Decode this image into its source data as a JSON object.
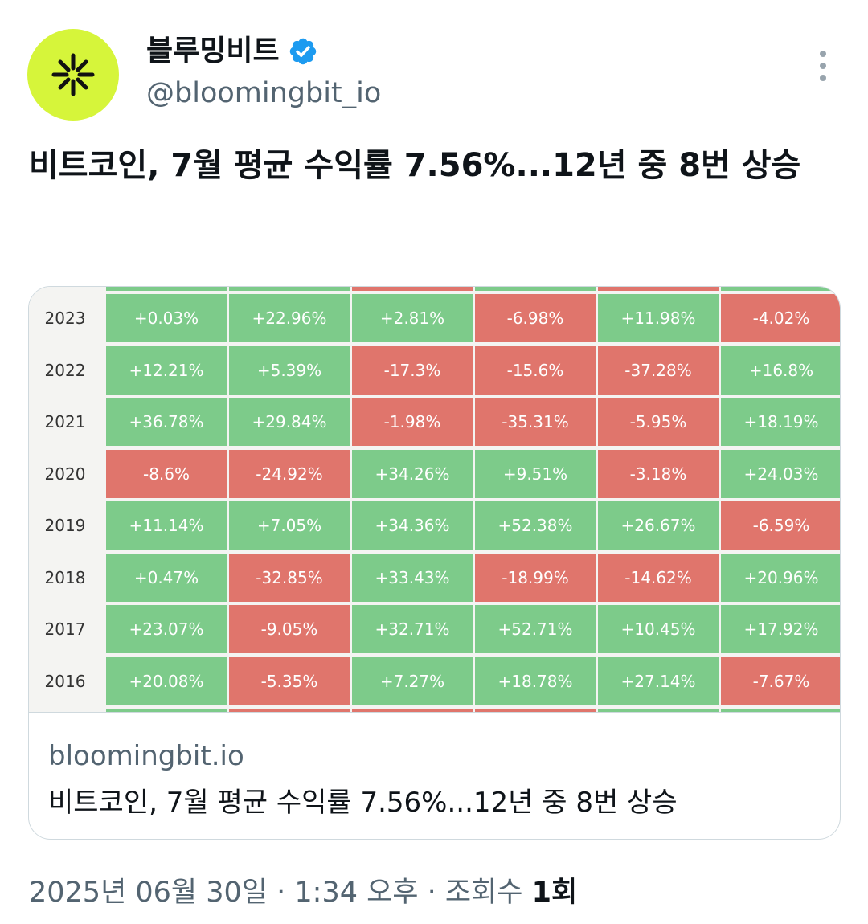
{
  "account": {
    "display_name": "블루밍비트",
    "handle": "@bloomingbit_io",
    "avatar_color": "#d6f53a",
    "verified_color": "#1d9bf0"
  },
  "tweet": {
    "text": "비트코인, 7월 평균 수익률 7.56%...12년 중 8번 상승"
  },
  "card": {
    "domain": "bloomingbit.io",
    "title": "비트코인, 7월 평균 수익률 7.56%...12년 중 8번 상승",
    "image": {
      "positive_color": "#7dcb8a",
      "negative_color": "#e0756c",
      "rows": [
        {
          "year": "2023",
          "values": [
            "+0.03%",
            "+22.96%",
            "+2.81%",
            "-6.98%",
            "+11.98%",
            "-4.02%"
          ]
        },
        {
          "year": "2022",
          "values": [
            "+12.21%",
            "+5.39%",
            "-17.3%",
            "-15.6%",
            "-37.28%",
            "+16.8%"
          ]
        },
        {
          "year": "2021",
          "values": [
            "+36.78%",
            "+29.84%",
            "-1.98%",
            "-35.31%",
            "-5.95%",
            "+18.19%"
          ]
        },
        {
          "year": "2020",
          "values": [
            "-8.6%",
            "-24.92%",
            "+34.26%",
            "+9.51%",
            "-3.18%",
            "+24.03%"
          ]
        },
        {
          "year": "2019",
          "values": [
            "+11.14%",
            "+7.05%",
            "+34.36%",
            "+52.38%",
            "+26.67%",
            "-6.59%"
          ]
        },
        {
          "year": "2018",
          "values": [
            "+0.47%",
            "-32.85%",
            "+33.43%",
            "-18.99%",
            "-14.62%",
            "+20.96%"
          ]
        },
        {
          "year": "2017",
          "values": [
            "+23.07%",
            "-9.05%",
            "+32.71%",
            "+52.71%",
            "+10.45%",
            "+17.92%"
          ]
        },
        {
          "year": "2016",
          "values": [
            "+20.08%",
            "-5.35%",
            "+7.27%",
            "+18.78%",
            "+27.14%",
            "-7.67%"
          ]
        }
      ],
      "top_partial_row_signs": [
        "+",
        "+",
        "-",
        "+",
        "-",
        "+"
      ],
      "bottom_partial_row_signs": [
        "+",
        "-",
        "-",
        "-",
        "+",
        "+"
      ]
    }
  },
  "meta": {
    "date": "2025년 06월 30일",
    "time": "1:34 오후",
    "separator": " · ",
    "views_label": "조회수",
    "views_count": "1회"
  }
}
